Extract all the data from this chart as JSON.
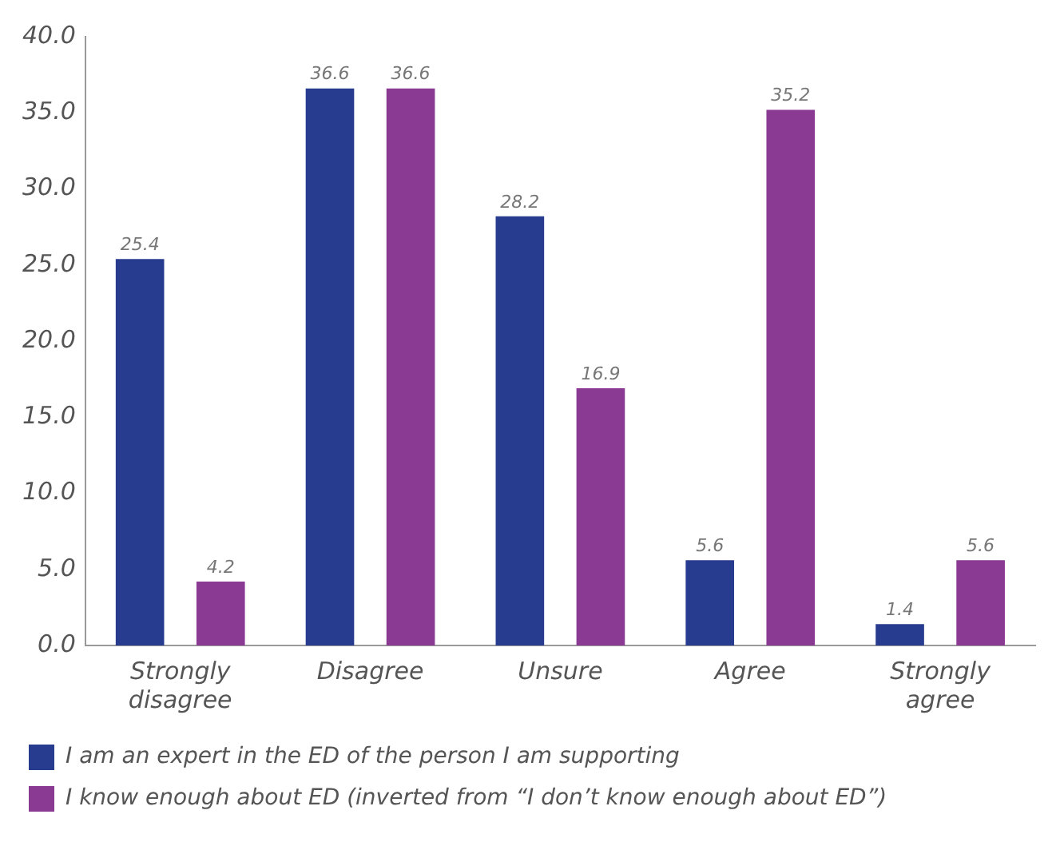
{
  "chart_data": {
    "type": "bar",
    "categories": [
      "Strongly disagree",
      "Disagree",
      "Unsure",
      "Agree",
      "Strongly agree"
    ],
    "series": [
      {
        "name": "I am an expert in the ED of the person I am supporting",
        "color": "#283c8f",
        "values": [
          25.4,
          36.6,
          28.2,
          5.6,
          1.4
        ]
      },
      {
        "name": "I know enough about ED (inverted from “I don’t know enough about ED”)",
        "color": "#8a3a92",
        "values": [
          4.2,
          36.6,
          16.9,
          35.2,
          5.6
        ]
      }
    ],
    "ylim": [
      0,
      40
    ],
    "yticks": [
      {
        "value": 0,
        "label": "0.0"
      },
      {
        "value": 5,
        "label": "5.0"
      },
      {
        "value": 10,
        "label": "10.0"
      },
      {
        "value": 15,
        "label": "15.0"
      },
      {
        "value": 20,
        "label": "20.0"
      },
      {
        "value": 25,
        "label": "25.0"
      },
      {
        "value": 30,
        "label": "30.0"
      },
      {
        "value": 35,
        "label": "35.0"
      },
      {
        "value": 40,
        "label": "40.0"
      }
    ],
    "grid": false,
    "legend": "bottom",
    "data_labels": true
  }
}
